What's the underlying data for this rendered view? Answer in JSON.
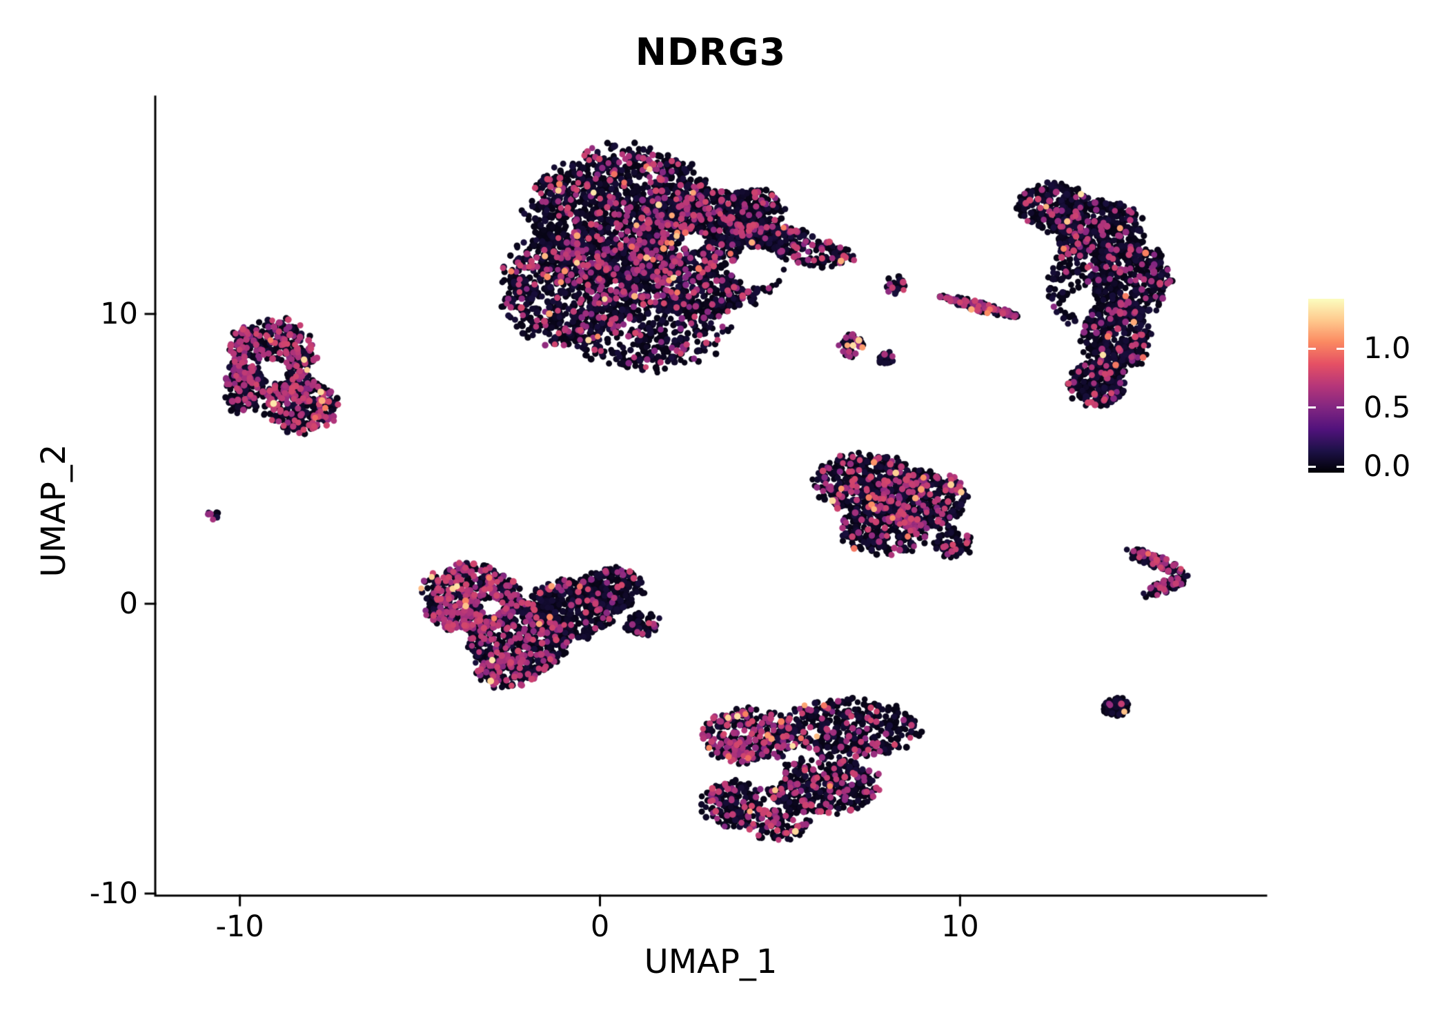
{
  "chart_data": {
    "type": "scatter",
    "title": "NDRG3",
    "xlabel": "UMAP_1",
    "ylabel": "UMAP_2",
    "xlim": [
      -12.35,
      18.5
    ],
    "ylim": [
      -10.07,
      17.5
    ],
    "x_ticks": [
      -10,
      0,
      10
    ],
    "x_tick_labels": [
      "-10",
      "0",
      "10"
    ],
    "y_ticks": [
      10,
      0,
      -10
    ],
    "y_tick_labels": [
      "10",
      "0",
      "-10"
    ],
    "grid": false,
    "legend": {
      "position": "right",
      "tick_labels": [
        "1.0",
        "0.5",
        "0.0"
      ],
      "tick_values": [
        1.0,
        0.5,
        0.0
      ],
      "range": [
        -0.05,
        1.42
      ],
      "colormap": "magma",
      "stops": [
        {
          "t": 0.0,
          "color": "#000004"
        },
        {
          "t": 0.125,
          "color": "#1D1147"
        },
        {
          "t": 0.25,
          "color": "#51127C"
        },
        {
          "t": 0.375,
          "color": "#822681"
        },
        {
          "t": 0.5,
          "color": "#B63679"
        },
        {
          "t": 0.625,
          "color": "#E55064"
        },
        {
          "t": 0.75,
          "color": "#FB8961"
        },
        {
          "t": 0.875,
          "color": "#FEC98D"
        },
        {
          "t": 1.0,
          "color": "#FCFDBF"
        }
      ]
    },
    "point_radius_px": 4.6,
    "holes": [
      {
        "cx": 4.4,
        "cy": 11.6,
        "r": 0.7
      },
      {
        "cx": 2.6,
        "cy": 12.5,
        "r": 0.35
      },
      {
        "cx": -9.05,
        "cy": 8.05,
        "r": 0.4
      },
      {
        "cx": 13.35,
        "cy": 10.4,
        "r": 0.45
      },
      {
        "cx": 4.6,
        "cy": -5.85,
        "r": 0.55
      },
      {
        "cx": -3.0,
        "cy": -0.1,
        "r": 0.3
      }
    ],
    "clusters": [
      {
        "name": "top-center-large",
        "mid": 0.13,
        "high": 0.012,
        "blobs": [
          {
            "cx": 0.6,
            "cy": 13.3,
            "rx": 2.6,
            "ry": 2.4,
            "n": 1500
          },
          {
            "cx": 2.9,
            "cy": 12.1,
            "rx": 2.2,
            "ry": 2.1,
            "n": 1150
          },
          {
            "cx": -0.9,
            "cy": 10.9,
            "rx": 1.8,
            "ry": 1.9,
            "n": 750
          },
          {
            "cx": 1.3,
            "cy": 9.5,
            "rx": 2.2,
            "ry": 1.4,
            "n": 450
          },
          {
            "cx": 5.3,
            "cy": 12.4,
            "rx": 1.7,
            "ry": 0.55,
            "rot": -18,
            "n": 240,
            "mid": 0.2
          },
          {
            "cx": 4.2,
            "cy": 13.5,
            "rx": 0.9,
            "ry": 0.8,
            "n": 170
          }
        ]
      },
      {
        "name": "upper-left",
        "mid": 0.3,
        "high": 0.008,
        "blobs": [
          {
            "cx": -9.1,
            "cy": 8.6,
            "rx": 1.2,
            "ry": 1.2,
            "n": 430
          },
          {
            "cx": -8.3,
            "cy": 6.8,
            "rx": 1.0,
            "ry": 0.9,
            "n": 300
          },
          {
            "cx": -9.9,
            "cy": 7.4,
            "rx": 0.55,
            "ry": 0.85,
            "n": 140
          }
        ]
      },
      {
        "name": "tiny-left-dot",
        "mid": 0.45,
        "high": 0,
        "blobs": [
          {
            "cx": -10.75,
            "cy": 3.05,
            "rx": 0.17,
            "ry": 0.17,
            "n": 9
          }
        ]
      },
      {
        "name": "right-crescent",
        "mid": 0.1,
        "high": 0.006,
        "blobs": [
          {
            "cx": 12.6,
            "cy": 13.7,
            "rx": 0.95,
            "ry": 0.85,
            "n": 250
          },
          {
            "cx": 13.9,
            "cy": 12.9,
            "rx": 1.2,
            "ry": 1.0,
            "n": 380
          },
          {
            "cx": 14.7,
            "cy": 11.2,
            "rx": 1.1,
            "ry": 1.3,
            "n": 420
          },
          {
            "cx": 14.3,
            "cy": 9.2,
            "rx": 0.95,
            "ry": 1.2,
            "n": 380
          },
          {
            "cx": 13.8,
            "cy": 7.6,
            "rx": 0.8,
            "ry": 0.75,
            "n": 220
          },
          {
            "cx": 13.0,
            "cy": 11.0,
            "rx": 0.55,
            "ry": 1.3,
            "n": 110
          }
        ]
      },
      {
        "name": "mid-small-groups",
        "mid": 0.2,
        "high": 0.01,
        "blobs": [
          {
            "cx": 8.2,
            "cy": 11.0,
            "rx": 0.28,
            "ry": 0.33,
            "n": 26,
            "mid": 0.25,
            "high": 0
          },
          {
            "cx": 10.55,
            "cy": 10.25,
            "rx": 1.1,
            "ry": 0.16,
            "rot": -18,
            "n": 135,
            "mid": 0.3,
            "high": 0.02
          },
          {
            "cx": 7.0,
            "cy": 8.9,
            "rx": 0.35,
            "ry": 0.4,
            "n": 48,
            "mid": 0.25,
            "high": 0.12
          },
          {
            "cx": 7.95,
            "cy": 8.5,
            "rx": 0.23,
            "ry": 0.23,
            "n": 20,
            "mid": 0.1,
            "high": 0
          }
        ]
      },
      {
        "name": "center-right-triangle",
        "mid": 0.17,
        "high": 0.012,
        "blobs": [
          {
            "cx": 7.4,
            "cy": 4.2,
            "rx": 1.4,
            "ry": 1.0,
            "n": 420
          },
          {
            "cx": 8.9,
            "cy": 3.6,
            "rx": 1.25,
            "ry": 1.0,
            "n": 380
          },
          {
            "cx": 7.9,
            "cy": 2.6,
            "rx": 1.2,
            "ry": 0.9,
            "n": 300
          },
          {
            "cx": 9.8,
            "cy": 2.1,
            "rx": 0.55,
            "ry": 0.5,
            "n": 70
          }
        ]
      },
      {
        "name": "bottom-left",
        "mid": 0.15,
        "high": 0.01,
        "blobs": [
          {
            "cx": -3.6,
            "cy": 0.2,
            "rx": 1.35,
            "ry": 1.15,
            "n": 540,
            "mid": 0.32,
            "high": 0.02
          },
          {
            "cx": -2.3,
            "cy": -1.2,
            "rx": 1.4,
            "ry": 1.3,
            "n": 520,
            "mid": 0.2,
            "high": 0.012
          },
          {
            "cx": -0.8,
            "cy": -0.2,
            "rx": 1.25,
            "ry": 1.0,
            "n": 420,
            "mid": 0.1,
            "high": 0.004
          },
          {
            "cx": 0.3,
            "cy": 0.5,
            "rx": 0.9,
            "ry": 0.75,
            "n": 200,
            "mid": 0.07
          },
          {
            "cx": 1.2,
            "cy": -0.7,
            "rx": 0.55,
            "ry": 0.4,
            "n": 60,
            "mid": 0.1
          },
          {
            "cx": -2.6,
            "cy": -2.3,
            "rx": 0.8,
            "ry": 0.6,
            "n": 120,
            "mid": 0.25
          }
        ]
      },
      {
        "name": "bottom-center",
        "mid": 0.18,
        "high": 0.015,
        "blobs": [
          {
            "cx": 4.1,
            "cy": -4.6,
            "rx": 1.25,
            "ry": 0.95,
            "n": 360,
            "mid": 0.28,
            "high": 0.02
          },
          {
            "cx": 6.9,
            "cy": -4.3,
            "rx": 1.9,
            "ry": 1.0,
            "n": 420,
            "mid": 0.12,
            "high": 0.008
          },
          {
            "cx": 6.2,
            "cy": -6.3,
            "rx": 1.6,
            "ry": 0.95,
            "n": 420,
            "mid": 0.18,
            "high": 0.012
          },
          {
            "cx": 3.7,
            "cy": -6.9,
            "rx": 0.85,
            "ry": 0.8,
            "n": 170,
            "mid": 0.22,
            "high": 0.02
          },
          {
            "cx": 4.9,
            "cy": -7.6,
            "rx": 0.9,
            "ry": 0.55,
            "n": 110,
            "mid": 0.25,
            "high": 0.03
          }
        ]
      },
      {
        "name": "right-arrow",
        "mid": 0.28,
        "high": 0.01,
        "blobs": [
          {
            "cx": 15.35,
            "cy": 1.5,
            "rx": 0.9,
            "ry": 0.22,
            "rot": -25,
            "n": 90
          },
          {
            "cx": 15.7,
            "cy": 0.6,
            "rx": 0.7,
            "ry": 0.2,
            "rot": 28,
            "n": 70
          }
        ]
      },
      {
        "name": "small-round-right",
        "mid": 0.03,
        "high": 0.012,
        "blobs": [
          {
            "cx": 14.35,
            "cy": -3.55,
            "rx": 0.36,
            "ry": 0.34,
            "n": 100
          }
        ]
      }
    ]
  }
}
